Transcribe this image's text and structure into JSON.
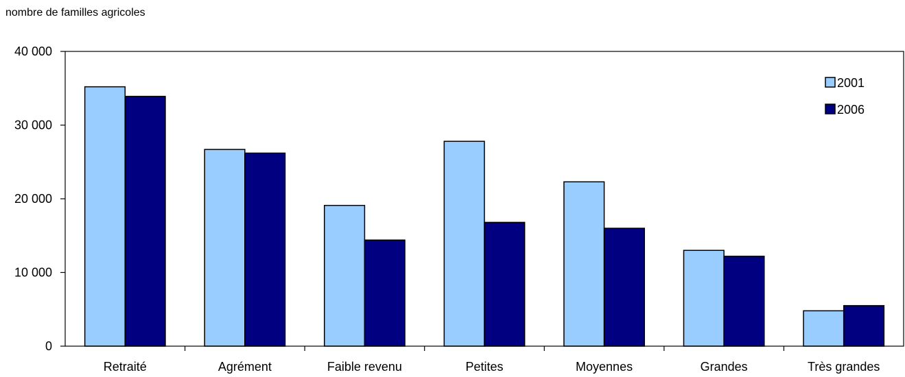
{
  "chart_data": {
    "type": "bar",
    "title": "",
    "ylabel": "nombre de familles agricoles",
    "xlabel": "",
    "ylim": [
      0,
      40000
    ],
    "yticks": [
      0,
      10000,
      20000,
      30000,
      40000
    ],
    "ytick_labels": [
      "0",
      "10 000",
      "20 000",
      "30 000",
      "40 000"
    ],
    "categories": [
      "Retraité",
      "Agrément",
      "Faible revenu",
      "Petites",
      "Moyennes",
      "Grandes",
      "Très grandes"
    ],
    "series": [
      {
        "name": "2001",
        "color": "#99ccff",
        "values": [
          35200,
          26700,
          19100,
          27800,
          22300,
          13000,
          4800
        ]
      },
      {
        "name": "2006",
        "color": "#000080",
        "values": [
          33900,
          26200,
          14400,
          16800,
          16000,
          12200,
          5500
        ]
      }
    ],
    "grid": false,
    "legend_position": "top-right"
  }
}
